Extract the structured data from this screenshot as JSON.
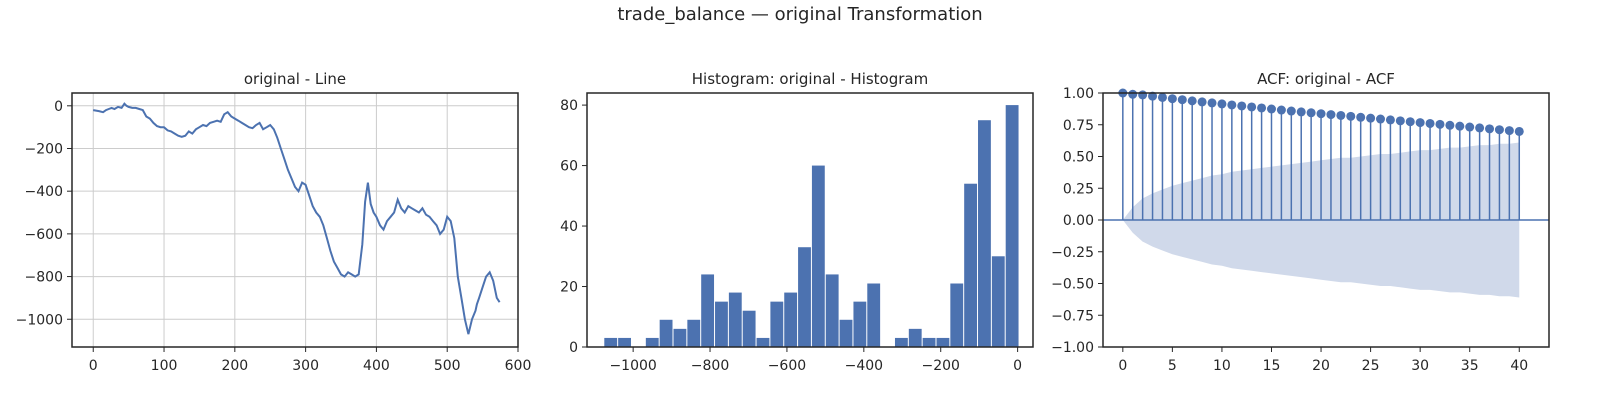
{
  "figure": {
    "title": "trade_balance — original Transformation"
  },
  "colors": {
    "series": "#4c72b0",
    "confidence_band": "#d0d9ea",
    "grid": "#cccccc",
    "axes": "#262626"
  },
  "chart_data": [
    {
      "type": "line",
      "title": "original - Line",
      "xlabel": "",
      "ylabel": "",
      "xlim": [
        -30,
        600
      ],
      "ylim": [
        -1130,
        60
      ],
      "xticks": [
        0,
        100,
        200,
        300,
        400,
        500,
        600
      ],
      "yticks": [
        0,
        -200,
        -400,
        -600,
        -800,
        -1000
      ],
      "grid": true,
      "x": [
        0,
        8,
        14,
        18,
        22,
        26,
        30,
        35,
        40,
        44,
        47,
        50,
        55,
        60,
        65,
        70,
        75,
        80,
        85,
        90,
        95,
        100,
        105,
        110,
        115,
        120,
        125,
        130,
        135,
        140,
        145,
        150,
        155,
        160,
        165,
        170,
        175,
        180,
        185,
        190,
        195,
        200,
        205,
        210,
        215,
        220,
        225,
        230,
        235,
        240,
        245,
        250,
        255,
        260,
        265,
        270,
        275,
        280,
        285,
        290,
        295,
        300,
        305,
        310,
        315,
        320,
        325,
        330,
        335,
        340,
        345,
        350,
        355,
        360,
        365,
        370,
        375,
        380,
        384,
        388,
        392,
        396,
        400,
        405,
        410,
        415,
        420,
        425,
        430,
        435,
        440,
        445,
        450,
        455,
        460,
        465,
        470,
        475,
        480,
        485,
        490,
        495,
        500,
        505,
        510,
        515,
        520,
        525,
        530,
        535,
        540,
        542,
        545,
        550,
        555,
        560,
        565,
        570,
        574
      ],
      "values": [
        -20,
        -25,
        -30,
        -20,
        -15,
        -10,
        -15,
        -5,
        -10,
        10,
        0,
        -5,
        -10,
        -10,
        -15,
        -20,
        -50,
        -60,
        -80,
        -95,
        -100,
        -100,
        -115,
        -120,
        -130,
        -140,
        -145,
        -140,
        -120,
        -130,
        -110,
        -100,
        -90,
        -95,
        -80,
        -75,
        -70,
        -75,
        -40,
        -30,
        -50,
        -60,
        -70,
        -80,
        -90,
        -100,
        -105,
        -90,
        -80,
        -110,
        -100,
        -90,
        -110,
        -150,
        -200,
        -250,
        -300,
        -340,
        -380,
        -400,
        -360,
        -370,
        -420,
        -470,
        -500,
        -520,
        -560,
        -620,
        -680,
        -730,
        -760,
        -790,
        -800,
        -780,
        -790,
        -800,
        -790,
        -650,
        -450,
        -360,
        -460,
        -500,
        -520,
        -560,
        -580,
        -540,
        -520,
        -500,
        -440,
        -480,
        -500,
        -470,
        -480,
        -490,
        -500,
        -480,
        -510,
        -520,
        -540,
        -560,
        -600,
        -580,
        -520,
        -540,
        -620,
        -800,
        -900,
        -1000,
        -1070,
        -1000,
        -960,
        -930,
        -900,
        -850,
        -800,
        -780,
        -820,
        -900,
        -920
      ]
    },
    {
      "type": "bar",
      "title": "Histogram: original - Histogram",
      "xlabel": "",
      "ylabel": "",
      "xlim": [
        -1120,
        40
      ],
      "ylim": [
        0,
        84
      ],
      "xticks": [
        -1000,
        -800,
        -600,
        -400,
        -200,
        0
      ],
      "yticks": [
        0,
        20,
        40,
        60,
        80
      ],
      "grid": false,
      "bin_start": -1075,
      "bin_width": 36,
      "values": [
        3,
        3,
        0,
        3,
        9,
        6,
        9,
        24,
        15,
        18,
        12,
        3,
        15,
        18,
        33,
        60,
        24,
        9,
        15,
        21,
        0,
        3,
        6,
        3,
        3,
        21,
        54,
        75,
        30,
        80
      ]
    },
    {
      "type": "stem",
      "title": "ACF: original - ACF",
      "xlabel": "",
      "ylabel": "",
      "xlim": [
        -2,
        43
      ],
      "ylim": [
        -1.0,
        1.0
      ],
      "xticks": [
        0,
        5,
        10,
        15,
        20,
        25,
        30,
        35,
        40
      ],
      "yticks": [
        1.0,
        0.75,
        0.5,
        0.25,
        0.0,
        -0.25,
        -0.5,
        -0.75,
        -1.0
      ],
      "grid": false,
      "lags": [
        0,
        1,
        2,
        3,
        4,
        5,
        6,
        7,
        8,
        9,
        10,
        11,
        12,
        13,
        14,
        15,
        16,
        17,
        18,
        19,
        20,
        21,
        22,
        23,
        24,
        25,
        26,
        27,
        28,
        29,
        30,
        31,
        32,
        33,
        34,
        35,
        36,
        37,
        38,
        39,
        40
      ],
      "values": [
        1.0,
        0.99,
        0.985,
        0.975,
        0.965,
        0.955,
        0.947,
        0.938,
        0.93,
        0.922,
        0.914,
        0.906,
        0.898,
        0.89,
        0.882,
        0.874,
        0.866,
        0.858,
        0.851,
        0.844,
        0.837,
        0.83,
        0.823,
        0.816,
        0.809,
        0.802,
        0.795,
        0.788,
        0.781,
        0.774,
        0.767,
        0.76,
        0.753,
        0.746,
        0.739,
        0.732,
        0.725,
        0.718,
        0.711,
        0.704,
        0.697
      ],
      "confidence_upper": [
        0.0,
        0.1,
        0.17,
        0.21,
        0.24,
        0.27,
        0.29,
        0.31,
        0.33,
        0.35,
        0.36,
        0.38,
        0.39,
        0.4,
        0.41,
        0.42,
        0.43,
        0.44,
        0.45,
        0.46,
        0.47,
        0.48,
        0.49,
        0.49,
        0.5,
        0.51,
        0.52,
        0.52,
        0.53,
        0.54,
        0.55,
        0.55,
        0.56,
        0.57,
        0.57,
        0.58,
        0.59,
        0.59,
        0.6,
        0.6,
        0.61
      ]
    }
  ]
}
